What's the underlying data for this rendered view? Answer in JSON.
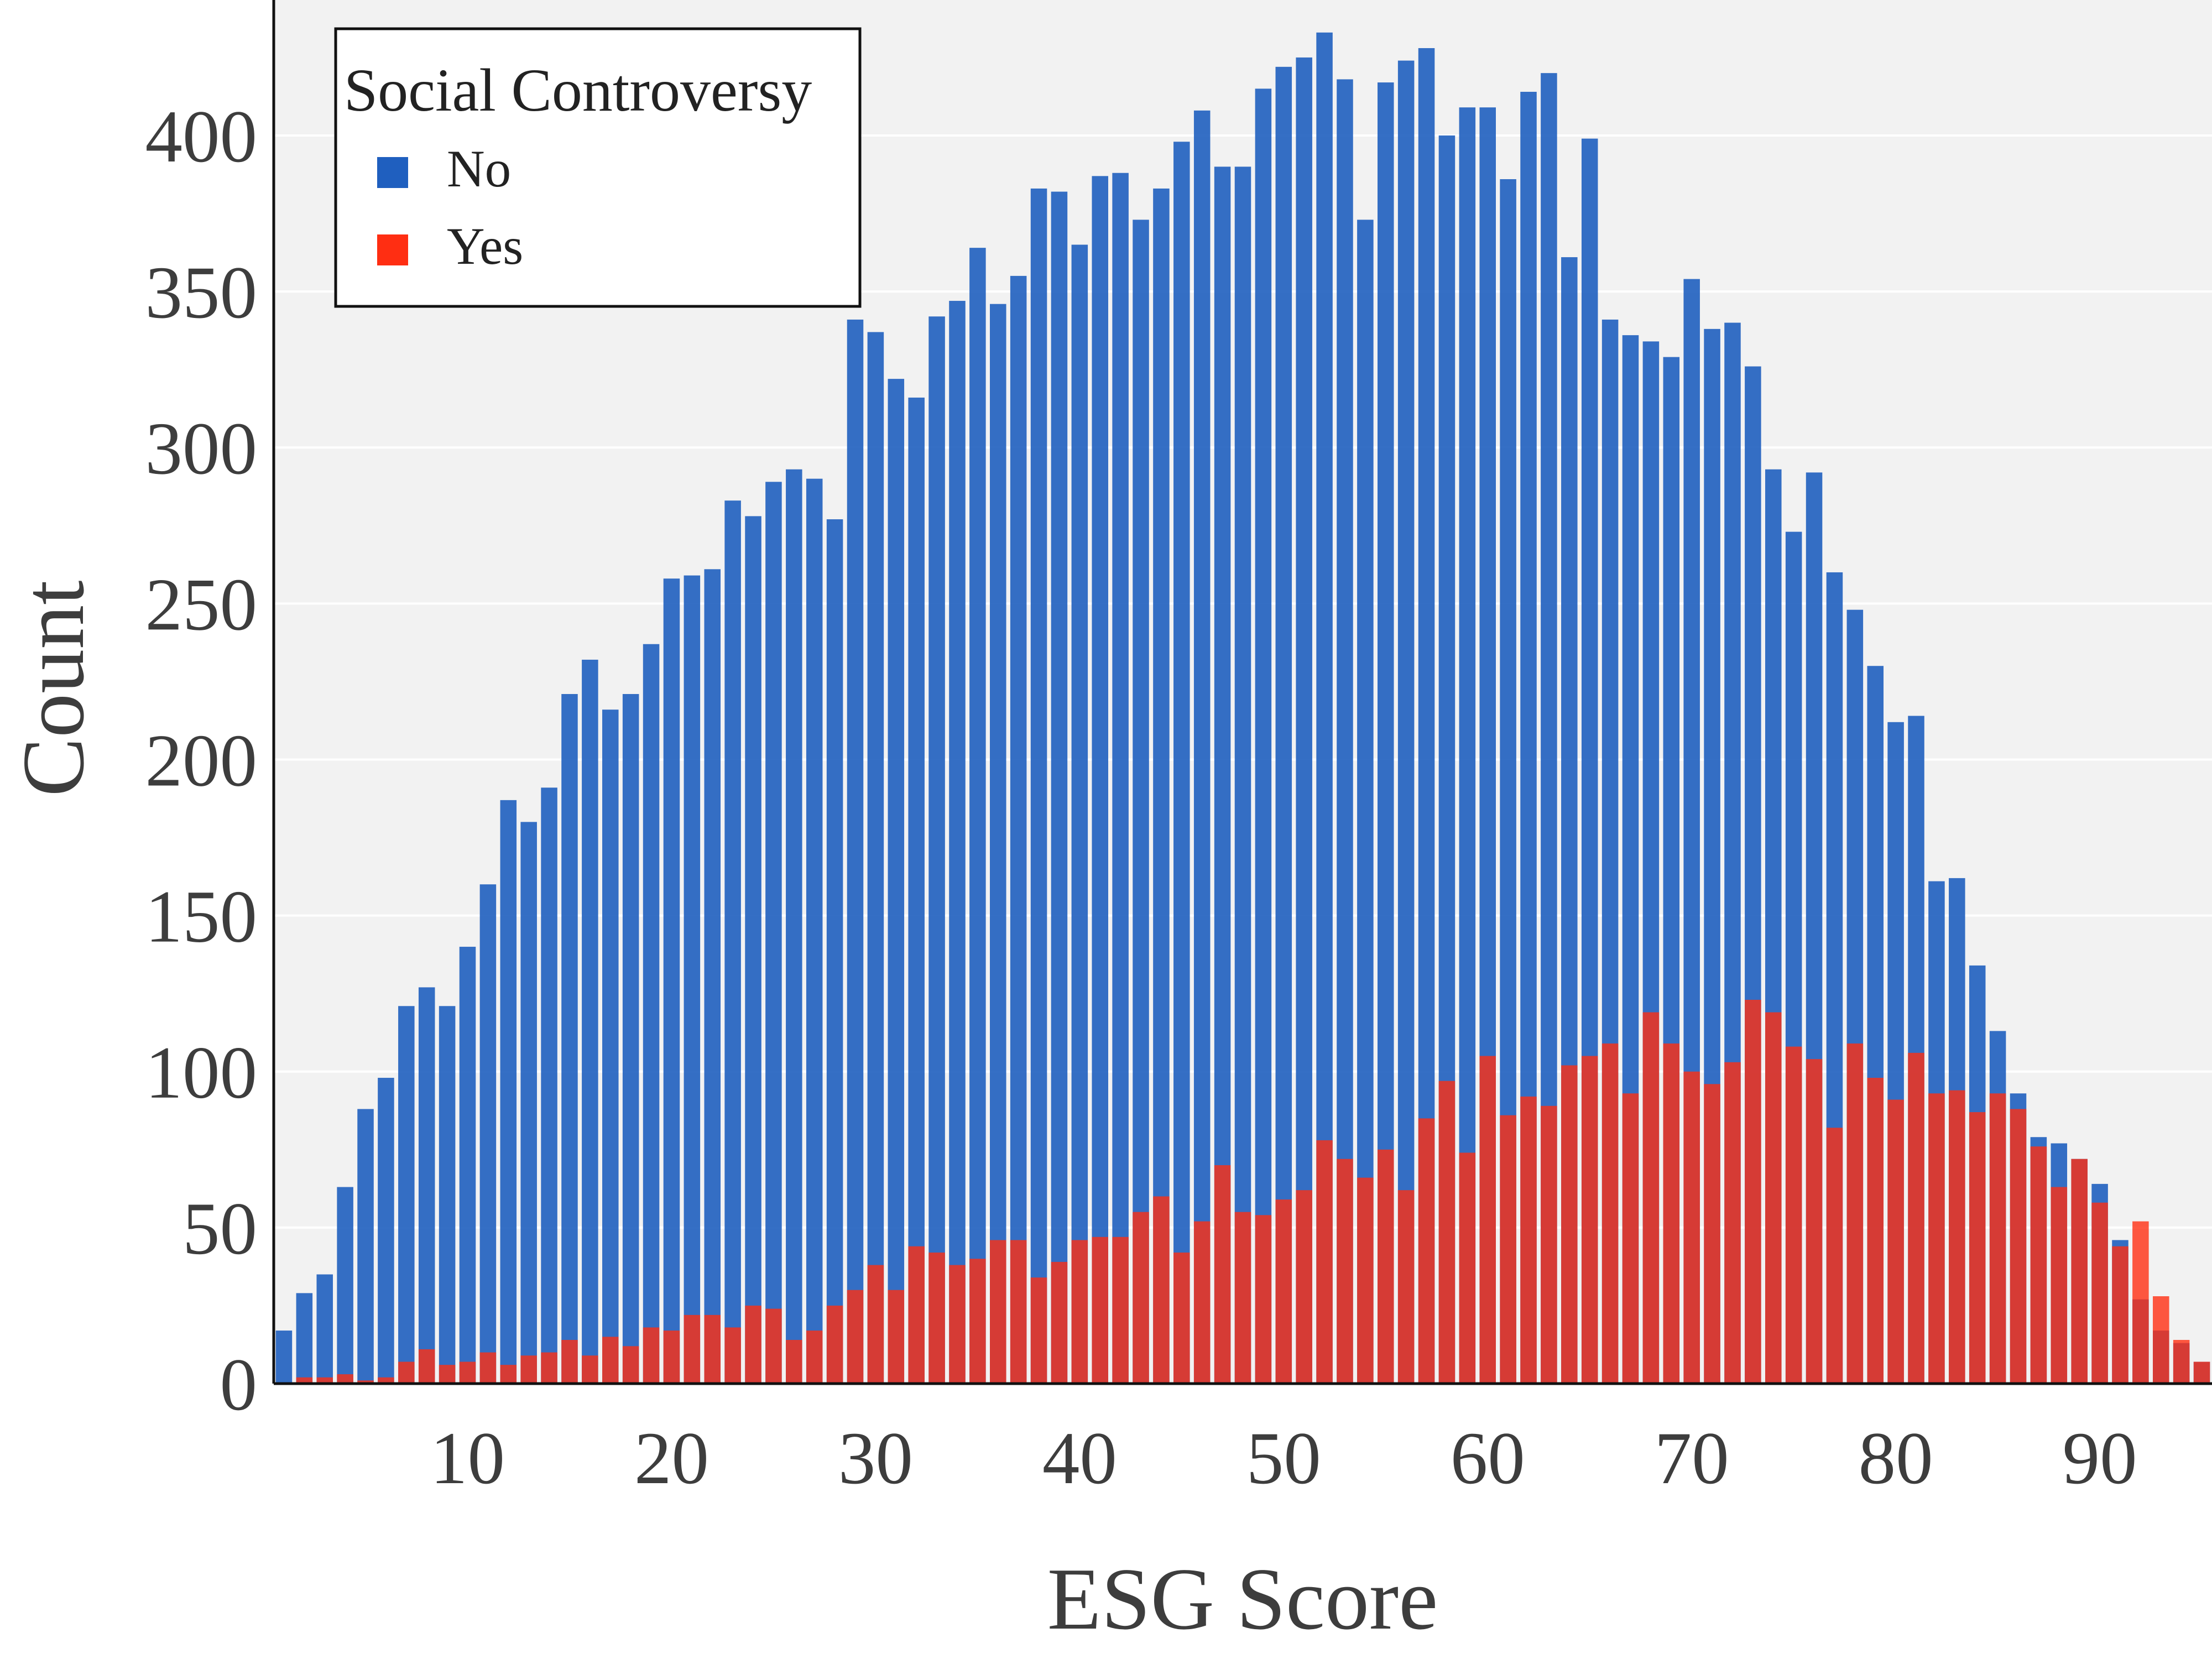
{
  "chart_data": {
    "type": "bar",
    "mode": "overlay",
    "title": "",
    "xlabel": "ESG Score",
    "ylabel": "Count",
    "xlim": [
      0.5,
      95.5
    ],
    "ylim": [
      0,
      450
    ],
    "xticks": [
      10,
      20,
      30,
      40,
      50,
      60,
      70,
      80,
      90
    ],
    "yticks": [
      0,
      50,
      100,
      150,
      200,
      250,
      300,
      350,
      400
    ],
    "grid": true,
    "legend": {
      "title": "Social Controversy",
      "placement": "top-left"
    },
    "x": [
      1,
      2,
      3,
      4,
      5,
      6,
      7,
      8,
      9,
      10,
      11,
      12,
      13,
      14,
      15,
      16,
      17,
      18,
      19,
      20,
      21,
      22,
      23,
      24,
      25,
      26,
      27,
      28,
      29,
      30,
      31,
      32,
      33,
      34,
      35,
      36,
      37,
      38,
      39,
      40,
      41,
      42,
      43,
      44,
      45,
      46,
      47,
      48,
      49,
      50,
      51,
      52,
      53,
      54,
      55,
      56,
      57,
      58,
      59,
      60,
      61,
      62,
      63,
      64,
      65,
      66,
      67,
      68,
      69,
      70,
      71,
      72,
      73,
      74,
      75,
      76,
      77,
      78,
      79,
      80,
      81,
      82,
      83,
      84,
      85,
      86,
      87,
      88,
      89,
      90,
      91,
      92,
      93,
      94,
      95
    ],
    "series": [
      {
        "name": "No",
        "color": "#1f5fbf",
        "values": [
          17,
          29,
          35,
          63,
          88,
          98,
          121,
          127,
          121,
          140,
          160,
          187,
          180,
          191,
          221,
          232,
          216,
          221,
          237,
          258,
          259,
          261,
          283,
          278,
          289,
          293,
          290,
          277,
          341,
          337,
          322,
          316,
          342,
          347,
          364,
          346,
          355,
          383,
          382,
          365,
          387,
          388,
          373,
          383,
          398,
          408,
          390,
          390,
          415,
          422,
          425,
          433,
          418,
          373,
          417,
          424,
          428,
          400,
          409,
          409,
          386,
          414,
          420,
          361,
          399,
          341,
          336,
          334,
          329,
          354,
          338,
          340,
          326,
          293,
          273,
          292,
          260,
          248,
          230,
          212,
          214,
          161,
          162,
          134,
          113,
          93,
          79,
          77,
          72,
          64,
          46,
          27,
          17,
          13,
          7
        ]
      },
      {
        "name": "Yes",
        "color": "#ff2e12",
        "values": [
          0,
          2,
          2,
          3,
          1,
          2,
          7,
          11,
          6,
          7,
          10,
          6,
          9,
          10,
          14,
          9,
          15,
          12,
          18,
          17,
          22,
          22,
          18,
          25,
          24,
          14,
          17,
          25,
          30,
          38,
          30,
          44,
          42,
          38,
          40,
          46,
          46,
          34,
          39,
          46,
          47,
          47,
          55,
          60,
          42,
          52,
          70,
          55,
          54,
          59,
          62,
          78,
          72,
          66,
          75,
          62,
          85,
          97,
          74,
          105,
          86,
          92,
          89,
          102,
          105,
          109,
          93,
          119,
          109,
          100,
          96,
          103,
          123,
          119,
          108,
          104,
          82,
          109,
          98,
          91,
          106,
          93,
          94,
          87,
          93,
          88,
          76,
          63,
          72,
          58,
          44,
          52,
          28,
          14,
          7
        ]
      }
    ]
  }
}
